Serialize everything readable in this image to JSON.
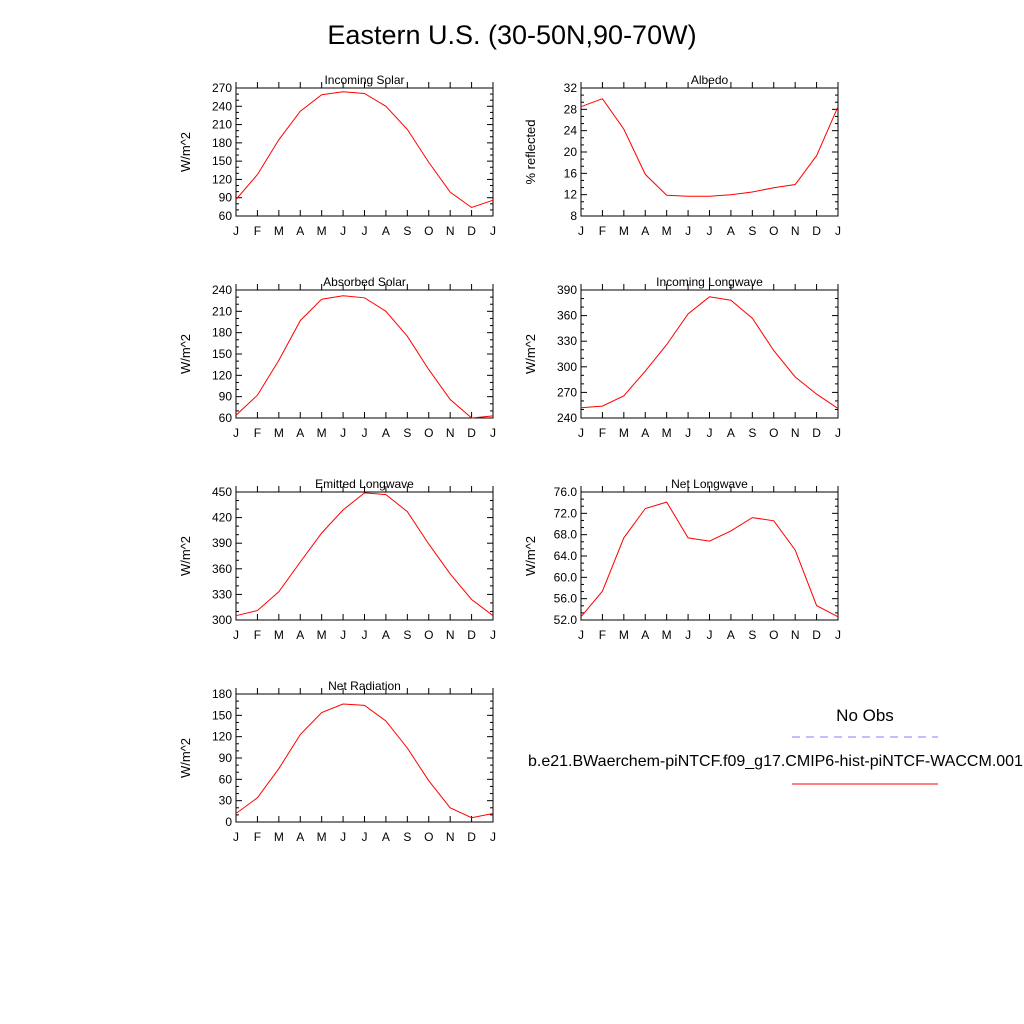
{
  "page": {
    "title": "Eastern U.S. (30-50N,90-70W)"
  },
  "colors": {
    "model_line": "#ff0000",
    "obs_line": "#8080ff",
    "axes": "#000000"
  },
  "chart_data": [
    {
      "type": "line",
      "title": "Incoming Solar",
      "ylabel": "W/m^2",
      "categories": [
        "J",
        "F",
        "M",
        "A",
        "M",
        "J",
        "J",
        "A",
        "S",
        "O",
        "N",
        "D",
        "J"
      ],
      "ylim": [
        60,
        270
      ],
      "yticks": [
        "60",
        "90",
        "120",
        "150",
        "180",
        "210",
        "240",
        "270"
      ],
      "series": [
        {
          "values": [
            87,
            128,
            185,
            232,
            259,
            264,
            261,
            240,
            202,
            148,
            99,
            74,
            86
          ]
        }
      ]
    },
    {
      "type": "line",
      "title": "Albedo",
      "ylabel": "% reflected",
      "categories": [
        "J",
        "F",
        "M",
        "A",
        "M",
        "J",
        "J",
        "A",
        "S",
        "O",
        "N",
        "D",
        "J"
      ],
      "ylim": [
        8,
        32
      ],
      "yticks": [
        "8",
        "12",
        "16",
        "20",
        "24",
        "28",
        "32"
      ],
      "series": [
        {
          "values": [
            28.5,
            30.0,
            24.3,
            15.8,
            11.9,
            11.7,
            11.7,
            12.0,
            12.5,
            13.3,
            13.9,
            19.3,
            28.5
          ]
        }
      ]
    },
    {
      "type": "line",
      "title": "Absorbed Solar",
      "ylabel": "W/m^2",
      "categories": [
        "J",
        "F",
        "M",
        "A",
        "M",
        "J",
        "J",
        "A",
        "S",
        "O",
        "N",
        "D",
        "J"
      ],
      "ylim": [
        60,
        240
      ],
      "yticks": [
        "60",
        "90",
        "120",
        "150",
        "180",
        "210",
        "240"
      ],
      "series": [
        {
          "values": [
            64,
            92,
            141,
            197,
            227,
            232,
            229,
            210,
            175,
            128,
            86,
            60,
            63
          ]
        }
      ]
    },
    {
      "type": "line",
      "title": "Incoming Longwave",
      "ylabel": "W/m^2",
      "categories": [
        "J",
        "F",
        "M",
        "A",
        "M",
        "J",
        "J",
        "A",
        "S",
        "O",
        "N",
        "D",
        "J"
      ],
      "ylim": [
        240,
        390
      ],
      "yticks": [
        "240",
        "270",
        "300",
        "330",
        "360",
        "390"
      ],
      "series": [
        {
          "values": [
            252,
            254,
            266,
            295,
            326,
            362,
            382,
            378,
            357,
            319,
            288,
            268,
            251
          ]
        }
      ]
    },
    {
      "type": "line",
      "title": "Emitted Longwave",
      "ylabel": "W/m^2",
      "categories": [
        "J",
        "F",
        "M",
        "A",
        "M",
        "J",
        "J",
        "A",
        "S",
        "O",
        "N",
        "D",
        "J"
      ],
      "ylim": [
        300,
        450
      ],
      "yticks": [
        "300",
        "330",
        "360",
        "390",
        "420",
        "450"
      ],
      "series": [
        {
          "values": [
            305,
            311,
            333,
            368,
            402,
            429,
            449,
            447,
            427,
            389,
            354,
            324,
            305
          ]
        }
      ]
    },
    {
      "type": "line",
      "title": "Net Longwave",
      "ylabel": "W/m^2",
      "categories": [
        "J",
        "F",
        "M",
        "A",
        "M",
        "J",
        "J",
        "A",
        "S",
        "O",
        "N",
        "D",
        "J"
      ],
      "ylim": [
        52,
        76
      ],
      "yticks": [
        "52.0",
        "56.0",
        "60.0",
        "64.0",
        "68.0",
        "72.0",
        "76.0"
      ],
      "series": [
        {
          "values": [
            52.6,
            57.4,
            67.4,
            72.9,
            74.1,
            67.4,
            66.8,
            68.7,
            71.2,
            70.6,
            65.1,
            54.7,
            52.6
          ]
        }
      ]
    },
    {
      "type": "line",
      "title": "Net Radiation",
      "ylabel": "W/m^2",
      "categories": [
        "J",
        "F",
        "M",
        "A",
        "M",
        "J",
        "J",
        "A",
        "S",
        "O",
        "N",
        "D",
        "J"
      ],
      "ylim": [
        0,
        180
      ],
      "yticks": [
        "0",
        "30",
        "60",
        "90",
        "120",
        "150",
        "180"
      ],
      "series": [
        {
          "values": [
            12,
            34,
            75,
            123,
            154,
            166,
            164,
            142,
            104,
            58,
            20,
            6,
            12
          ]
        }
      ]
    }
  ],
  "legend": {
    "obs_label": "No Obs",
    "model_label": "b.e21.BWaerchem-piNTCF.f09_g17.CMIP6-hist-piNTCF-WACCM.001"
  }
}
